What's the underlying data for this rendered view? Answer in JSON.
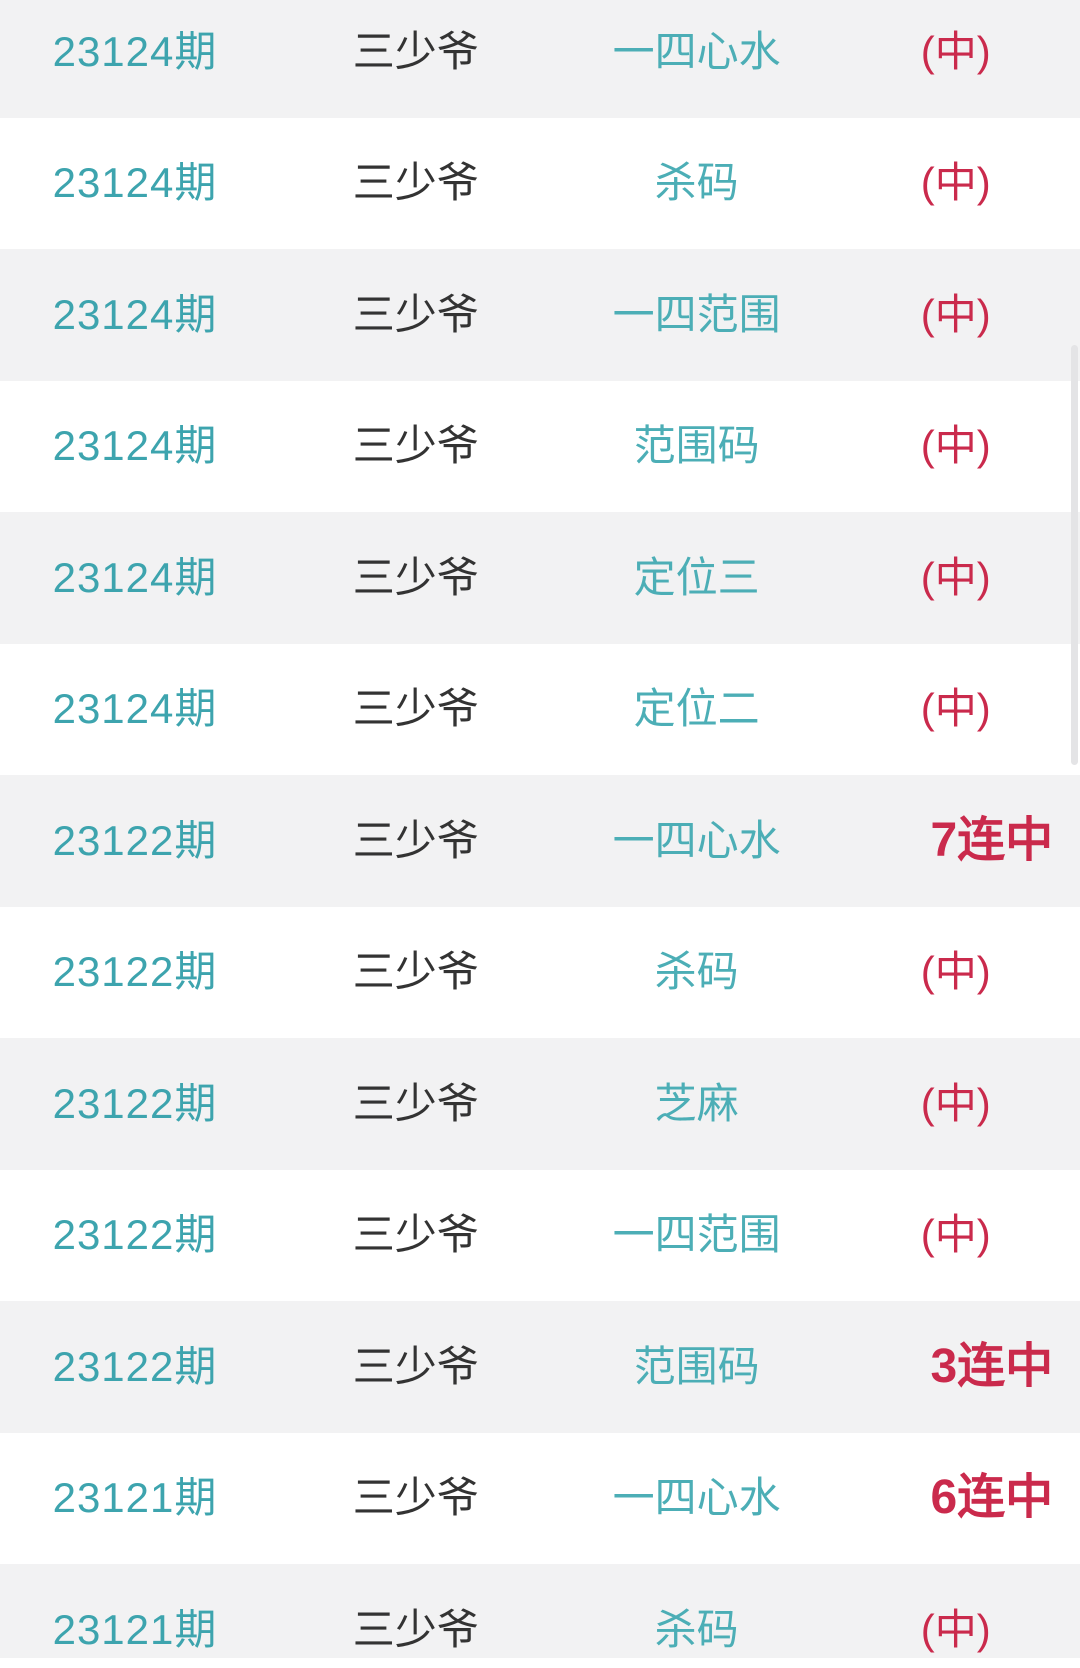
{
  "colors": {
    "page_bg": "#ffffff",
    "row_bg": "#ffffff",
    "row_alt_bg": "#f2f2f3",
    "period_color": "#3da4ae",
    "author_color": "#333333",
    "type_color": "#4caeb6",
    "result_color": "#ca2a4c",
    "scrollbar_color": "#e4e4e6"
  },
  "list": {
    "rows": [
      {
        "period": "23124期",
        "author": "三少爷",
        "type": "一四心水",
        "result": "(中)",
        "streak": false
      },
      {
        "period": "23124期",
        "author": "三少爷",
        "type": "杀码",
        "result": "(中)",
        "streak": false
      },
      {
        "period": "23124期",
        "author": "三少爷",
        "type": "一四范围",
        "result": "(中)",
        "streak": false
      },
      {
        "period": "23124期",
        "author": "三少爷",
        "type": "范围码",
        "result": "(中)",
        "streak": false
      },
      {
        "period": "23124期",
        "author": "三少爷",
        "type": "定位三",
        "result": "(中)",
        "streak": false
      },
      {
        "period": "23124期",
        "author": "三少爷",
        "type": "定位二",
        "result": "(中)",
        "streak": false
      },
      {
        "period": "23122期",
        "author": "三少爷",
        "type": "一四心水",
        "result": "7连中",
        "streak": true
      },
      {
        "period": "23122期",
        "author": "三少爷",
        "type": "杀码",
        "result": "(中)",
        "streak": false
      },
      {
        "period": "23122期",
        "author": "三少爷",
        "type": "芝麻",
        "result": "(中)",
        "streak": false
      },
      {
        "period": "23122期",
        "author": "三少爷",
        "type": "一四范围",
        "result": "(中)",
        "streak": false
      },
      {
        "period": "23122期",
        "author": "三少爷",
        "type": "范围码",
        "result": "3连中",
        "streak": true
      },
      {
        "period": "23121期",
        "author": "三少爷",
        "type": "一四心水",
        "result": "6连中",
        "streak": true
      },
      {
        "period": "23121期",
        "author": "三少爷",
        "type": "杀码",
        "result": "(中)",
        "streak": false
      }
    ]
  }
}
